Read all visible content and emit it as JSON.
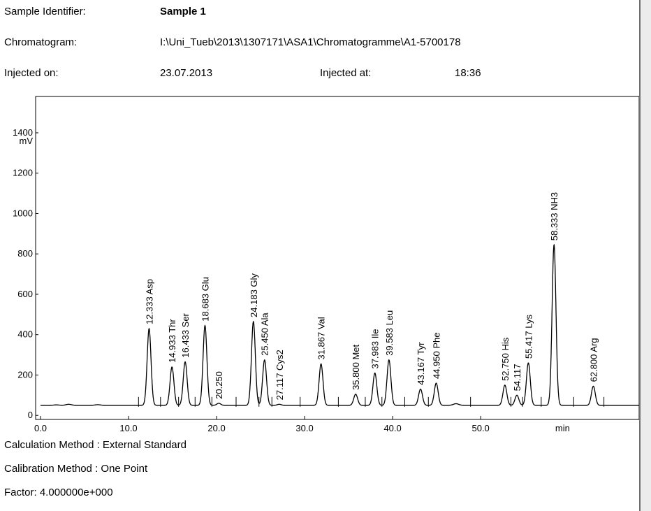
{
  "header": {
    "sample_identifier_label": "Sample Identifier:",
    "sample_identifier_value": "Sample 1",
    "chromatogram_label": "Chromatogram:",
    "chromatogram_value": "I:\\Uni_Tueb\\2013\\1307171\\ASA1\\Chromatogramme\\A1-5700178",
    "injected_on_label": "Injected on:",
    "injected_on_value": "23.07.2013",
    "injected_at_label": "Injected at:",
    "injected_at_value": "18:36"
  },
  "footer": {
    "calculation_method": "Calculation Method : External Standard",
    "calibration_method": "Calibration Method : One Point",
    "factor": "Factor:  4.000000e+000"
  },
  "chart_data": {
    "type": "line",
    "title": "",
    "xlabel": "min",
    "ylabel": "mV",
    "xlim": [
      0,
      65
    ],
    "ylim": [
      -20,
      1580
    ],
    "x_ticks": [
      0,
      10,
      20,
      30,
      40,
      50
    ],
    "x_tick_labels": [
      "0.0",
      "10.0",
      "20.0",
      "30.0",
      "40.0",
      "50.0"
    ],
    "y_ticks": [
      0,
      200,
      400,
      600,
      800,
      1000,
      1200,
      1400
    ],
    "y_tick_labels": [
      "0",
      "200",
      "400",
      "600",
      "800",
      "1000",
      "1200",
      "1400"
    ],
    "baseline": 50,
    "line_color": "#000000",
    "peaks": [
      {
        "rt": 12.333,
        "height": 430,
        "label": "12.333 Asp"
      },
      {
        "rt": 14.933,
        "height": 240,
        "label": "14.933 Thr"
      },
      {
        "rt": 16.433,
        "height": 265,
        "label": "16.433 Ser"
      },
      {
        "rt": 18.683,
        "height": 445,
        "label": "18.683 Glu"
      },
      {
        "rt": 20.25,
        "height": 60,
        "label": "20.250"
      },
      {
        "rt": 24.183,
        "height": 465,
        "label": "24.183 Gly"
      },
      {
        "rt": 25.45,
        "height": 275,
        "label": "25.450 Ala"
      },
      {
        "rt": 27.117,
        "height": 55,
        "label": "27.117 Cys2"
      },
      {
        "rt": 31.867,
        "height": 255,
        "label": "31.867 Val"
      },
      {
        "rt": 35.8,
        "height": 105,
        "label": "35.800 Met"
      },
      {
        "rt": 37.983,
        "height": 210,
        "label": "37.983 Ile"
      },
      {
        "rt": 39.583,
        "height": 275,
        "label": "39.583 Leu"
      },
      {
        "rt": 43.167,
        "height": 130,
        "label": "43.167 Tyr"
      },
      {
        "rt": 44.95,
        "height": 160,
        "label": "44.950 Phe"
      },
      {
        "rt": 52.75,
        "height": 150,
        "label": "52.750 His"
      },
      {
        "rt": 54.117,
        "height": 100,
        "label": "54.117"
      },
      {
        "rt": 55.417,
        "height": 260,
        "label": "55.417 Lys"
      },
      {
        "rt": 58.333,
        "height": 845,
        "label": "58.333 NH3"
      },
      {
        "rt": 62.8,
        "height": 145,
        "label": "62.800 Arg"
      }
    ],
    "minor_bumps": [
      {
        "rt": 1.8,
        "height": 52
      },
      {
        "rt": 3.2,
        "height": 55
      },
      {
        "rt": 6.5,
        "height": 53
      },
      {
        "rt": 47.2,
        "height": 58
      }
    ],
    "grid": false
  }
}
